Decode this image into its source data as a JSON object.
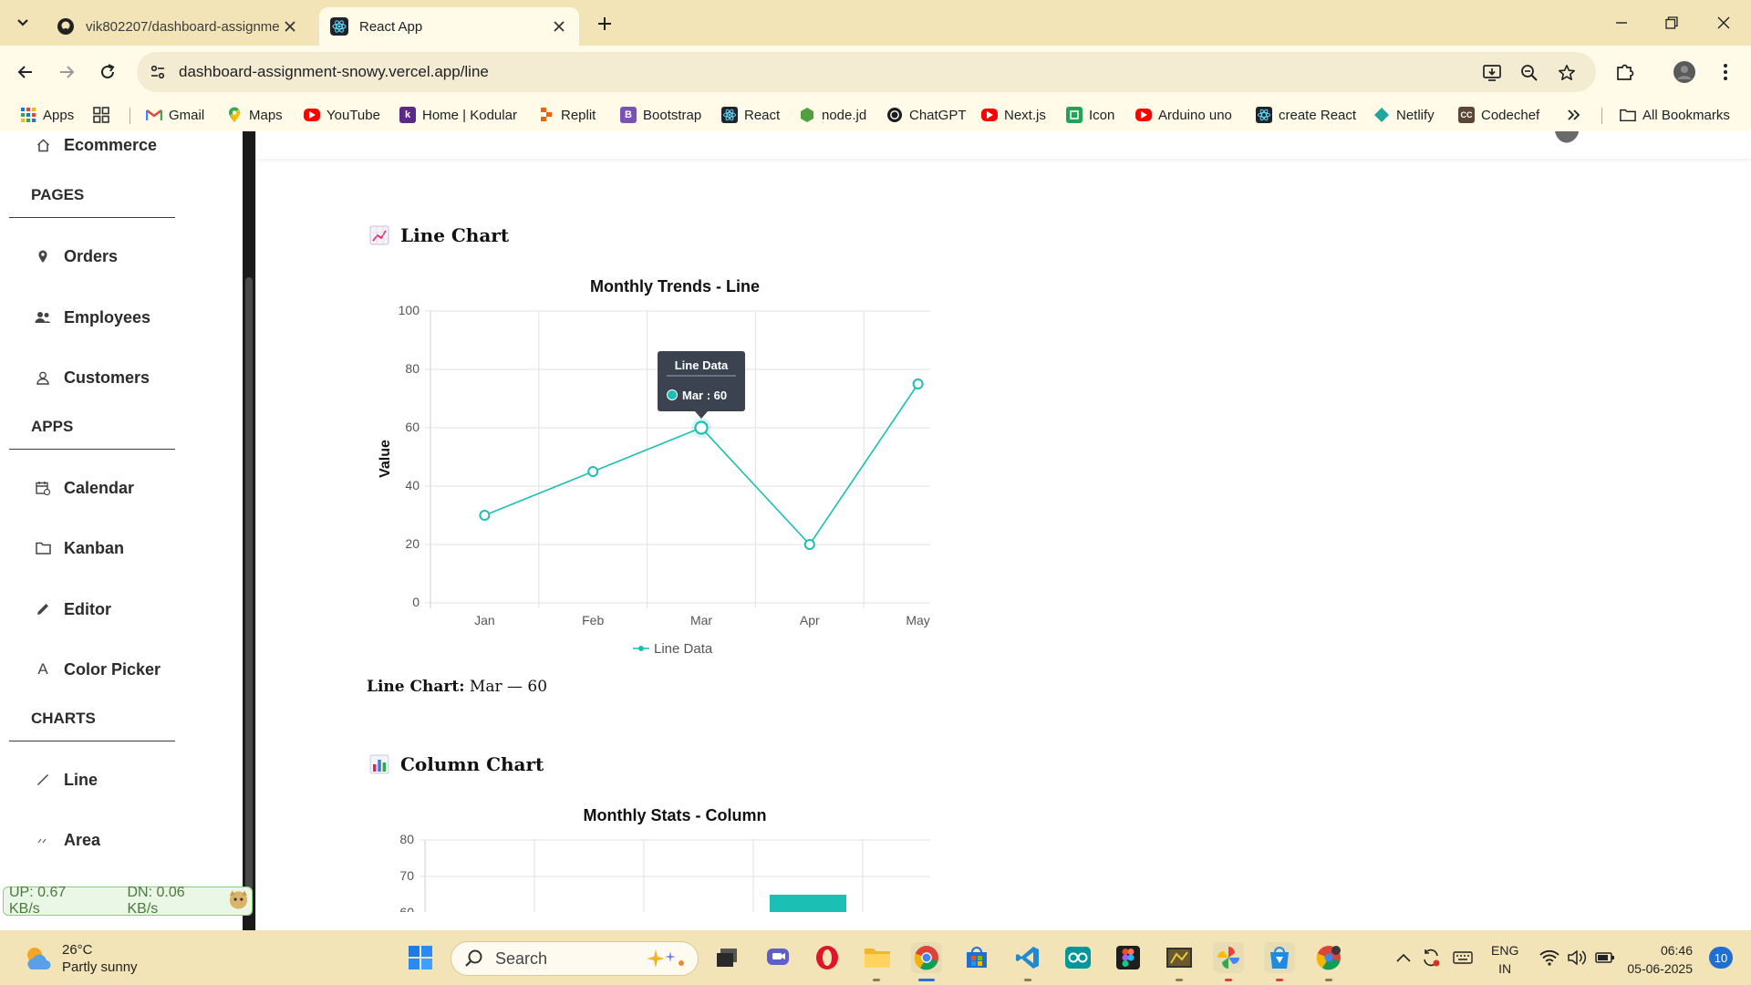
{
  "browser": {
    "tabs": [
      {
        "title": "vik802207/dashboard-assignme",
        "active": false
      },
      {
        "title": "React App",
        "active": true
      }
    ],
    "url": "dashboard-assignment-snowy.vercel.app/line",
    "bookmarks": [
      {
        "label": "Apps",
        "icon": "apps-grid-icon"
      },
      {
        "label": "",
        "icon": "tab-groups-icon"
      },
      {
        "label": "Gmail",
        "icon": "gmail-icon"
      },
      {
        "label": "Maps",
        "icon": "maps-icon"
      },
      {
        "label": "YouTube",
        "icon": "youtube-icon"
      },
      {
        "label": "Home | Kodular",
        "icon": "kodular-icon"
      },
      {
        "label": "Replit",
        "icon": "replit-icon"
      },
      {
        "label": "Bootstrap",
        "icon": "bootstrap-icon"
      },
      {
        "label": "React",
        "icon": "react-icon"
      },
      {
        "label": "node.jd",
        "icon": "nodejs-icon"
      },
      {
        "label": "ChatGPT",
        "icon": "chatgpt-icon"
      },
      {
        "label": "Next.js",
        "icon": "youtube-icon"
      },
      {
        "label": "Icon",
        "icon": "icon-site-icon"
      },
      {
        "label": "Arduino uno",
        "icon": "youtube-icon"
      },
      {
        "label": "create React",
        "icon": "react-icon"
      },
      {
        "label": "Netlify",
        "icon": "netlify-icon"
      },
      {
        "label": "Codechef",
        "icon": "codechef-icon"
      }
    ],
    "all_bookmarks": "All Bookmarks"
  },
  "sidebar": {
    "top_item": "Ecommerce",
    "sections": [
      {
        "title": "PAGES",
        "items": [
          "Orders",
          "Employees",
          "Customers"
        ]
      },
      {
        "title": "APPS",
        "items": [
          "Calendar",
          "Kanban",
          "Editor",
          "Color Picker"
        ]
      },
      {
        "title": "CHARTS",
        "items": [
          "Line",
          "Area"
        ]
      }
    ],
    "netspeed": {
      "up": "UP: 0.67 KB/s",
      "down": "DN: 0.06 KB/s"
    }
  },
  "main": {
    "line_section": {
      "heading": "Line Chart",
      "caption_label": "Line Chart:",
      "caption_value": "Mar — 60",
      "tooltip": {
        "title": "Line Data",
        "text": "Mar : 60"
      }
    },
    "column_section": {
      "heading": "Column Chart"
    }
  },
  "chart_data": [
    {
      "type": "line",
      "title": "Monthly Trends - Line",
      "xlabel": "",
      "ylabel": "Value",
      "categories": [
        "Jan",
        "Feb",
        "Mar",
        "Apr",
        "May"
      ],
      "series": [
        {
          "name": "Line Data",
          "values": [
            30,
            45,
            60,
            20,
            75
          ],
          "color": "#1bbfb4"
        }
      ],
      "ylim": [
        0,
        100
      ],
      "yticks": [
        0,
        20,
        40,
        60,
        80,
        100
      ],
      "grid": true,
      "legend": "bottom",
      "highlighted": {
        "category": "Mar",
        "value": 60
      }
    },
    {
      "type": "bar",
      "title": "Monthly Stats - Column",
      "ylim": [
        50,
        80
      ],
      "yticks": [
        60,
        70,
        80
      ],
      "color": "#1bbfb4",
      "visible_bar": {
        "category_index": 3,
        "value": 65
      }
    }
  ],
  "taskbar": {
    "weather": {
      "temp": "26°C",
      "desc": "Partly sunny"
    },
    "search_label": "Search",
    "lang": {
      "line1": "ENG",
      "line2": "IN"
    },
    "time": "06:46",
    "date": "05-06-2025",
    "notifications": "10"
  },
  "colors": {
    "accent": "#1bbfb4",
    "chrome": "#f2e4b6",
    "tooltip_bg": "#3b4350"
  }
}
